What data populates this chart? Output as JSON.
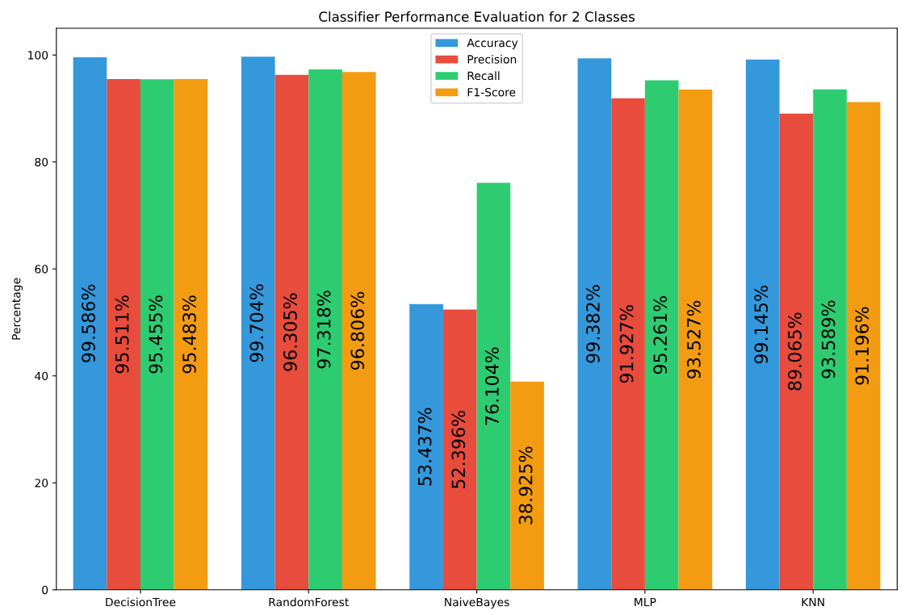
{
  "chart_data": {
    "type": "bar",
    "title": "Classifier Performance Evaluation for 2 Classes",
    "ylabel": "Percentage",
    "categories": [
      "DecisionTree",
      "RandomForest",
      "NaiveBayes",
      "MLP",
      "KNN"
    ],
    "series": [
      {
        "name": "Accuracy",
        "color": "#3498db",
        "values": [
          99.586,
          99.704,
          53.437,
          99.382,
          99.145
        ],
        "value_labels": [
          "99.586%",
          "99.704%",
          "53.437%",
          "99.382%",
          "99.145%"
        ]
      },
      {
        "name": "Precision",
        "color": "#e74c3c",
        "values": [
          95.511,
          96.305,
          52.396,
          91.927,
          89.065
        ],
        "value_labels": [
          "95.511%",
          "96.305%",
          "52.396%",
          "91.927%",
          "89.065%"
        ]
      },
      {
        "name": "Recall",
        "color": "#2ecc71",
        "values": [
          95.455,
          97.318,
          76.104,
          95.261,
          93.589
        ],
        "value_labels": [
          "95.455%",
          "97.318%",
          "76.104%",
          "95.261%",
          "93.589%"
        ]
      },
      {
        "name": "F1-Score",
        "color": "#f39c12",
        "values": [
          95.483,
          96.806,
          38.925,
          93.527,
          91.196
        ],
        "value_labels": [
          "95.483%",
          "96.806%",
          "38.925%",
          "93.527%",
          "91.196%"
        ]
      }
    ],
    "ylim": [
      0,
      105
    ],
    "yticks": [
      0,
      20,
      40,
      60,
      80,
      100
    ],
    "legend": "top",
    "grid": false
  }
}
